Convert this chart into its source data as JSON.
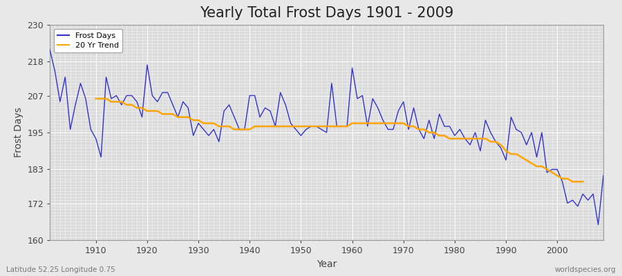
{
  "title": "Yearly Total Frost Days 1901 - 2009",
  "xlabel": "Year",
  "ylabel": "Frost Days",
  "lat_lon_label": "Latitude 52.25 Longitude 0.75",
  "watermark": "worldspecies.org",
  "years": [
    1901,
    1902,
    1903,
    1904,
    1905,
    1906,
    1907,
    1908,
    1909,
    1910,
    1911,
    1912,
    1913,
    1914,
    1915,
    1916,
    1917,
    1918,
    1919,
    1920,
    1921,
    1922,
    1923,
    1924,
    1925,
    1926,
    1927,
    1928,
    1929,
    1930,
    1931,
    1932,
    1933,
    1934,
    1935,
    1936,
    1937,
    1938,
    1939,
    1940,
    1941,
    1942,
    1943,
    1944,
    1945,
    1946,
    1947,
    1948,
    1949,
    1950,
    1951,
    1952,
    1953,
    1954,
    1955,
    1956,
    1957,
    1958,
    1959,
    1960,
    1961,
    1962,
    1963,
    1964,
    1965,
    1966,
    1967,
    1968,
    1969,
    1970,
    1971,
    1972,
    1973,
    1974,
    1975,
    1976,
    1977,
    1978,
    1979,
    1980,
    1981,
    1982,
    1983,
    1984,
    1985,
    1986,
    1987,
    1988,
    1989,
    1990,
    1991,
    1992,
    1993,
    1994,
    1995,
    1996,
    1997,
    1998,
    1999,
    2000,
    2001,
    2002,
    2003,
    2004,
    2005,
    2006,
    2007,
    2008,
    2009
  ],
  "frost_days": [
    222,
    215,
    205,
    213,
    196,
    204,
    211,
    206,
    196,
    193,
    187,
    213,
    206,
    207,
    204,
    207,
    207,
    205,
    200,
    217,
    207,
    205,
    208,
    208,
    204,
    200,
    205,
    203,
    194,
    198,
    196,
    194,
    196,
    192,
    202,
    204,
    200,
    196,
    196,
    207,
    207,
    200,
    203,
    202,
    197,
    208,
    204,
    198,
    196,
    194,
    196,
    197,
    197,
    196,
    195,
    211,
    197,
    197,
    197,
    216,
    206,
    207,
    197,
    206,
    203,
    199,
    196,
    196,
    202,
    205,
    196,
    203,
    196,
    193,
    199,
    193,
    201,
    197,
    197,
    194,
    196,
    193,
    191,
    195,
    189,
    199,
    195,
    192,
    190,
    186,
    200,
    196,
    195,
    191,
    195,
    187,
    195,
    182,
    183,
    183,
    179,
    172,
    173,
    171,
    175,
    173,
    175,
    165,
    181
  ],
  "trend_years": [
    1910,
    1911,
    1912,
    1913,
    1914,
    1915,
    1916,
    1917,
    1918,
    1919,
    1920,
    1921,
    1922,
    1923,
    1924,
    1925,
    1926,
    1927,
    1928,
    1929,
    1930,
    1931,
    1932,
    1933,
    1934,
    1935,
    1936,
    1937,
    1938,
    1939,
    1940,
    1941,
    1942,
    1943,
    1944,
    1945,
    1946,
    1947,
    1948,
    1949,
    1950,
    1951,
    1952,
    1953,
    1954,
    1955,
    1956,
    1957,
    1958,
    1959,
    1960,
    1961,
    1962,
    1963,
    1964,
    1965,
    1966,
    1967,
    1968,
    1969,
    1970,
    1971,
    1972,
    1973,
    1974,
    1975,
    1976,
    1977,
    1978,
    1979,
    1980,
    1981,
    1982,
    1983,
    1984,
    1985,
    1986,
    1987,
    1988,
    1989,
    1990,
    1991,
    1992,
    1993,
    1994,
    1995,
    1996,
    1997,
    1998,
    1999,
    2000,
    2001,
    2002,
    2003,
    2004,
    2005
  ],
  "trend_values": [
    206,
    206,
    206,
    205,
    205,
    205,
    204,
    204,
    203,
    203,
    202,
    202,
    202,
    201,
    201,
    201,
    200,
    200,
    200,
    199,
    199,
    198,
    198,
    198,
    197,
    197,
    197,
    196,
    196,
    196,
    196,
    197,
    197,
    197,
    197,
    197,
    197,
    197,
    197,
    197,
    197,
    197,
    197,
    197,
    197,
    197,
    197,
    197,
    197,
    197,
    198,
    198,
    198,
    198,
    198,
    198,
    198,
    198,
    198,
    198,
    198,
    197,
    197,
    196,
    196,
    195,
    195,
    194,
    194,
    193,
    193,
    193,
    193,
    193,
    193,
    193,
    193,
    192,
    192,
    191,
    189,
    188,
    188,
    187,
    186,
    185,
    184,
    184,
    183,
    182,
    181,
    180,
    180,
    179,
    179,
    179
  ],
  "line_color": "#3333cc",
  "trend_color": "#ffa500",
  "bg_color": "#e8e8e8",
  "plot_bg_color": "#dcdcdc",
  "grid_color": "#ffffff",
  "ylim": [
    160,
    230
  ],
  "yticks": [
    160,
    172,
    183,
    195,
    207,
    218,
    230
  ],
  "xlim": [
    1901,
    2009
  ],
  "xticks": [
    1910,
    1920,
    1930,
    1940,
    1950,
    1960,
    1970,
    1980,
    1990,
    2000
  ],
  "title_fontsize": 15,
  "axis_label_fontsize": 10,
  "tick_fontsize": 9,
  "legend_fontsize": 8
}
